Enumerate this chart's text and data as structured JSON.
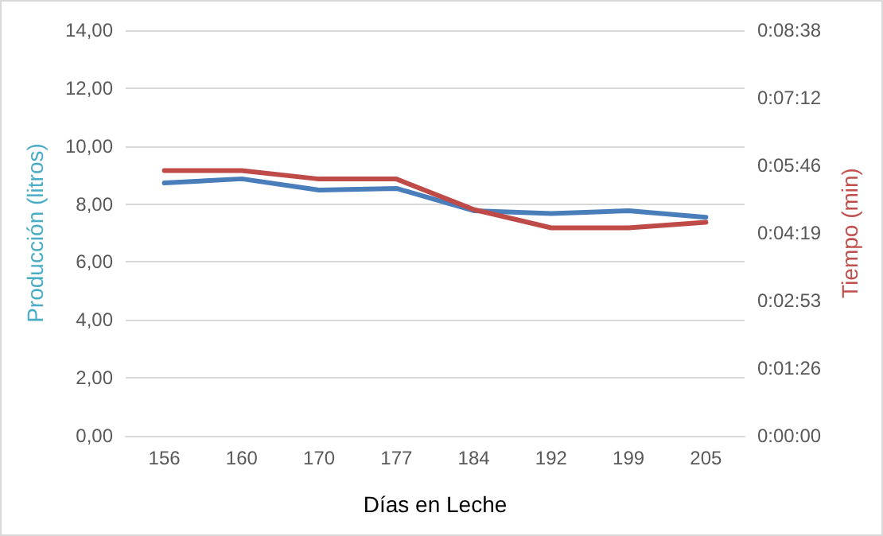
{
  "chart_data": {
    "type": "line",
    "xlabel": "Días en Leche",
    "ylabel": "Producción (litros)",
    "y2label": "Tiempo (min)",
    "categories": [
      "156",
      "160",
      "170",
      "177",
      "184",
      "192",
      "199",
      "205"
    ],
    "series": [
      {
        "color": "#4a7ebb",
        "values": [
          8.73,
          8.87,
          8.48,
          8.54,
          7.77,
          7.67,
          7.77,
          7.54
        ]
      },
      {
        "color": "#be4b48",
        "axis": "y2",
        "values": [
          5.65,
          5.65,
          5.47,
          5.47,
          4.82,
          4.43,
          4.43,
          4.55
        ]
      }
    ],
    "ylim": [
      0,
      14
    ],
    "yticks": [
      {
        "value": 0,
        "label": "0,00"
      },
      {
        "value": 2,
        "label": "2,00"
      },
      {
        "value": 4,
        "label": "4,00"
      },
      {
        "value": 6,
        "label": "6,00"
      },
      {
        "value": 8,
        "label": "8,00"
      },
      {
        "value": 10,
        "label": "10,00"
      },
      {
        "value": 12,
        "label": "12,00"
      },
      {
        "value": 14,
        "label": "14,00"
      }
    ],
    "y2lim": [
      0,
      8.64
    ],
    "y2ticks": [
      {
        "value": 0,
        "label": "0:00:00"
      },
      {
        "value": 1.44,
        "label": "0:01:26"
      },
      {
        "value": 2.88,
        "label": "0:02:53"
      },
      {
        "value": 4.32,
        "label": "0:04:19"
      },
      {
        "value": 5.76,
        "label": "0:05:46"
      },
      {
        "value": 7.2,
        "label": "0:07:12"
      },
      {
        "value": 8.64,
        "label": "0:08:38"
      }
    ],
    "grid": "y",
    "marker": "none",
    "line_style": "solid"
  }
}
